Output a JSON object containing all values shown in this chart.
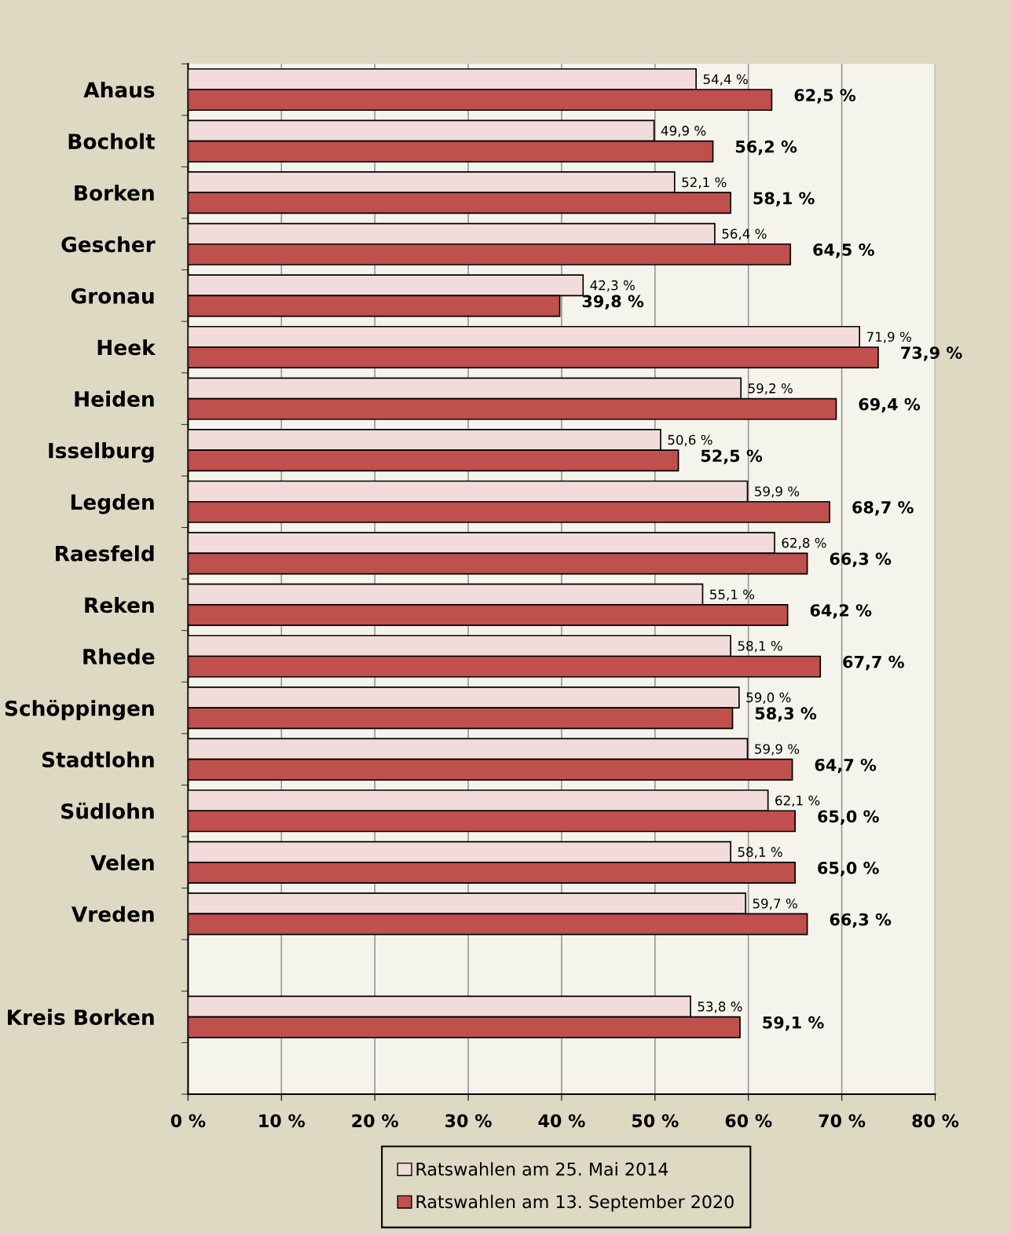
{
  "chart_data": {
    "type": "bar",
    "orientation": "horizontal",
    "categories": [
      "Ahaus",
      "Bocholt",
      "Borken",
      "Gescher",
      "Gronau",
      "Heek",
      "Heiden",
      "Isselburg",
      "Legden",
      "Raesfeld",
      "Reken",
      "Rhede",
      "Schöppingen",
      "Stadtlohn",
      "Südlohn",
      "Velen",
      "Vreden",
      null,
      "Kreis Borken",
      null
    ],
    "series": [
      {
        "name": "Ratswahlen am 25. Mai 2014",
        "color": "#f2dcdb",
        "values": [
          54.4,
          49.9,
          52.1,
          56.4,
          42.3,
          71.9,
          59.2,
          50.6,
          59.9,
          62.8,
          55.1,
          58.1,
          59.0,
          59.9,
          62.1,
          58.1,
          59.7,
          null,
          53.8,
          null
        ],
        "value_labels": [
          "54,4 %",
          "49,9 %",
          "52,1 %",
          "56,4 %",
          "42,3 %",
          "71,9 %",
          "59,2 %",
          "50,6 %",
          "59,9 %",
          "62,8 %",
          "55,1 %",
          "58,1 %",
          "59,0 %",
          "59,9 %",
          "62,1 %",
          "58,1 %",
          "59,7 %",
          null,
          "53,8 %",
          null
        ]
      },
      {
        "name": "Ratswahlen am 13. September 2020",
        "color": "#c0504d",
        "values": [
          62.5,
          56.2,
          58.1,
          64.5,
          39.8,
          73.9,
          69.4,
          52.5,
          68.7,
          66.3,
          64.2,
          67.7,
          58.3,
          64.7,
          65.0,
          65.0,
          66.3,
          null,
          59.1,
          null
        ],
        "value_labels": [
          "62,5 %",
          "56,2 %",
          "58,1 %",
          "64,5 %",
          "39,8 %",
          "73,9 %",
          "69,4 %",
          "52,5 %",
          "68,7 %",
          "66,3 %",
          "64,2 %",
          "67,7 %",
          "58,3 %",
          "64,7 %",
          "65,0 %",
          "65,0 %",
          "66,3 %",
          null,
          "59,1 %",
          null
        ]
      }
    ],
    "xlim": [
      0,
      80
    ],
    "xticks": [
      {
        "value": 0,
        "label": "0 %"
      },
      {
        "value": 10,
        "label": "10 %"
      },
      {
        "value": 20,
        "label": "20 %"
      },
      {
        "value": 30,
        "label": "30 %"
      },
      {
        "value": 40,
        "label": "40 %"
      },
      {
        "value": 50,
        "label": "50 %"
      },
      {
        "value": 60,
        "label": "60 %"
      },
      {
        "value": 70,
        "label": "70 %"
      },
      {
        "value": 80,
        "label": "80 %"
      }
    ],
    "grid": "x",
    "legend": "bottom"
  }
}
